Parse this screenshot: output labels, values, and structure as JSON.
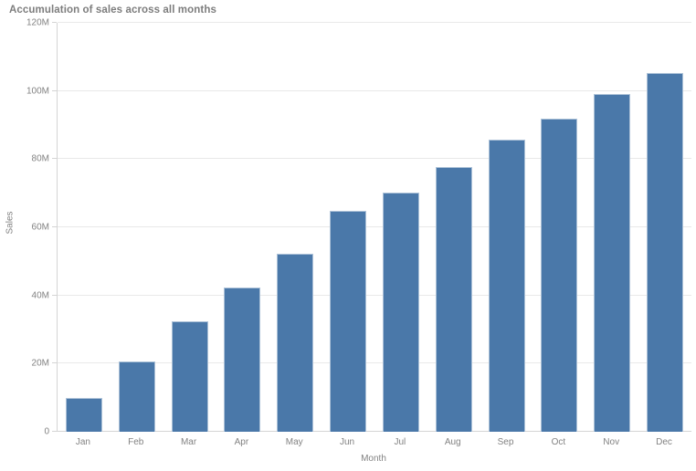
{
  "chart_data": {
    "type": "bar",
    "title": "Accumulation of sales across all months",
    "categories": [
      "Jan",
      "Feb",
      "Mar",
      "Apr",
      "May",
      "Jun",
      "Jul",
      "Aug",
      "Sep",
      "Oct",
      "Nov",
      "Dec"
    ],
    "values": [
      10,
      20.5,
      32.5,
      42.4,
      52.3,
      64.7,
      70.1,
      77.6,
      85.7,
      92,
      99,
      105.4
    ],
    "values_unit": "millions",
    "series_name": "Sales",
    "xlabel": "Month",
    "ylabel": "Sales",
    "ylim_millions": [
      0,
      120
    ],
    "y_tick_labels": [
      "0",
      "20M",
      "40M",
      "60M",
      "80M",
      "100M",
      "120M"
    ],
    "grid": true,
    "legend": false
  },
  "colors": {
    "bar": "#4a78a9",
    "grid": "#e9e9e9",
    "axis": "#d4d4d4",
    "tick_text": "#828282",
    "title_text": "#7d7d7d",
    "background": "#ffffff"
  }
}
